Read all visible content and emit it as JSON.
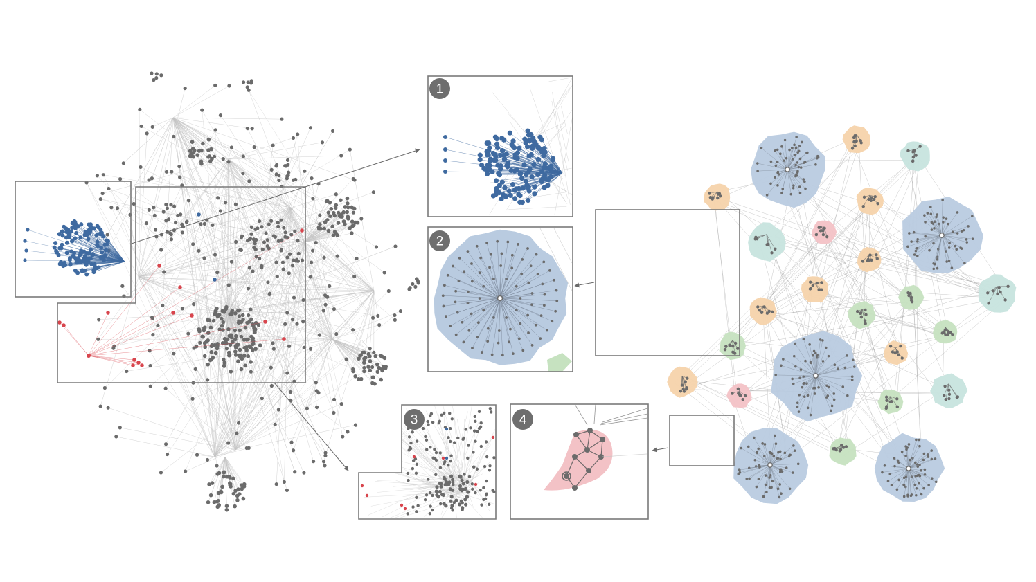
{
  "figure": {
    "badges": [
      {
        "id": "1",
        "label": "1"
      },
      {
        "id": "2",
        "label": "2"
      },
      {
        "id": "3",
        "label": "3"
      },
      {
        "id": "4",
        "label": "4"
      }
    ]
  },
  "colors": {
    "background": "#ffffff",
    "node": "#6b6b6b",
    "edge": "#c4c4c4",
    "highlight_blue": "#3f6aa0",
    "highlight_red": "#d8454d",
    "frame": "#7a7a7a",
    "badge": "#6e6e6e",
    "group_blue": "#b9cbe0",
    "group_orange": "#f6d3ab",
    "group_teal": "#c7e4de",
    "group_green": "#c6e2c0",
    "group_pink": "#f3c2c6"
  },
  "icons": {
    "badge": "numbered-circle-badge",
    "arrow": "arrow-head"
  }
}
